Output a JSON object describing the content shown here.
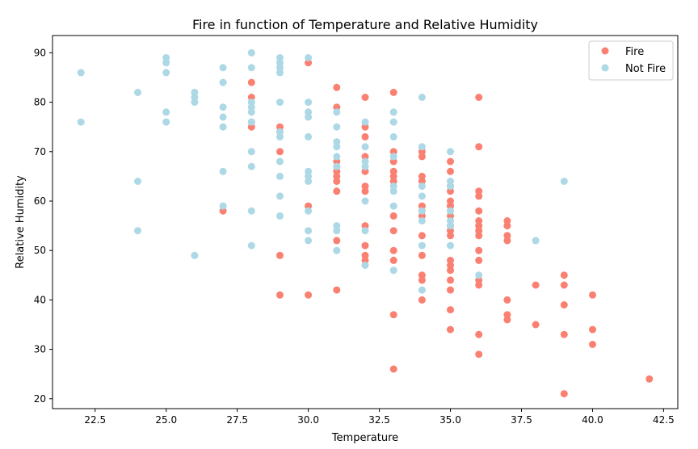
{
  "chart_data": {
    "type": "scatter",
    "title": "Fire in function of Temperature and Relative Humidity",
    "xlabel": "Temperature",
    "ylabel": "Relative Humidity",
    "xlim": [
      21.0,
      43.0
    ],
    "ylim": [
      18.0,
      93.5
    ],
    "xticks": [
      22.5,
      25.0,
      27.5,
      30.0,
      32.5,
      35.0,
      37.5,
      40.0,
      42.5
    ],
    "xtick_labels": [
      "22.5",
      "25.0",
      "27.5",
      "30.0",
      "32.5",
      "35.0",
      "37.5",
      "40.0",
      "42.5"
    ],
    "yticks": [
      20,
      30,
      40,
      50,
      60,
      70,
      80,
      90
    ],
    "ytick_labels": [
      "20",
      "30",
      "40",
      "50",
      "60",
      "70",
      "80",
      "90"
    ],
    "grid": false,
    "legend_position": "top-right",
    "series": [
      {
        "name": "Fire",
        "color": "#fa8072",
        "points": [
          [
            27,
            58
          ],
          [
            28,
            84
          ],
          [
            28,
            81
          ],
          [
            28,
            76
          ],
          [
            28,
            75
          ],
          [
            29,
            75
          ],
          [
            29,
            74
          ],
          [
            29,
            70
          ],
          [
            29,
            49
          ],
          [
            29,
            41
          ],
          [
            30,
            88
          ],
          [
            30,
            59
          ],
          [
            30,
            41
          ],
          [
            31,
            83
          ],
          [
            31,
            79
          ],
          [
            31,
            68
          ],
          [
            31,
            67
          ],
          [
            31,
            66
          ],
          [
            31,
            65
          ],
          [
            31,
            64
          ],
          [
            31,
            62
          ],
          [
            31,
            52
          ],
          [
            31,
            42
          ],
          [
            32,
            81
          ],
          [
            32,
            75
          ],
          [
            32,
            73
          ],
          [
            32,
            69
          ],
          [
            32,
            66
          ],
          [
            32,
            63
          ],
          [
            32,
            62
          ],
          [
            32,
            55
          ],
          [
            32,
            51
          ],
          [
            32,
            49
          ],
          [
            32,
            48
          ],
          [
            33,
            82
          ],
          [
            33,
            70
          ],
          [
            33,
            68
          ],
          [
            33,
            66
          ],
          [
            33,
            65
          ],
          [
            33,
            64
          ],
          [
            33,
            57
          ],
          [
            33,
            54
          ],
          [
            33,
            50
          ],
          [
            33,
            48
          ],
          [
            33,
            37
          ],
          [
            33,
            26
          ],
          [
            34,
            70
          ],
          [
            34,
            69
          ],
          [
            34,
            65
          ],
          [
            34,
            64
          ],
          [
            34,
            59
          ],
          [
            34,
            58
          ],
          [
            34,
            57
          ],
          [
            34,
            53
          ],
          [
            34,
            49
          ],
          [
            34,
            45
          ],
          [
            34,
            44
          ],
          [
            34,
            40
          ],
          [
            35,
            68
          ],
          [
            35,
            66
          ],
          [
            35,
            63
          ],
          [
            35,
            62
          ],
          [
            35,
            60
          ],
          [
            35,
            59
          ],
          [
            35,
            57
          ],
          [
            35,
            55
          ],
          [
            35,
            54
          ],
          [
            35,
            53
          ],
          [
            35,
            48
          ],
          [
            35,
            47
          ],
          [
            35,
            46
          ],
          [
            35,
            44
          ],
          [
            35,
            42
          ],
          [
            35,
            38
          ],
          [
            35,
            34
          ],
          [
            36,
            81
          ],
          [
            36,
            71
          ],
          [
            36,
            62
          ],
          [
            36,
            61
          ],
          [
            36,
            58
          ],
          [
            36,
            56
          ],
          [
            36,
            55
          ],
          [
            36,
            54
          ],
          [
            36,
            53
          ],
          [
            36,
            50
          ],
          [
            36,
            48
          ],
          [
            36,
            44
          ],
          [
            36,
            43
          ],
          [
            36,
            33
          ],
          [
            36,
            29
          ],
          [
            37,
            56
          ],
          [
            37,
            55
          ],
          [
            37,
            53
          ],
          [
            37,
            52
          ],
          [
            37,
            40
          ],
          [
            37,
            37
          ],
          [
            37,
            36
          ],
          [
            38,
            43
          ],
          [
            38,
            35
          ],
          [
            39,
            45
          ],
          [
            39,
            43
          ],
          [
            39,
            39
          ],
          [
            39,
            33
          ],
          [
            39,
            21
          ],
          [
            40,
            41
          ],
          [
            40,
            34
          ],
          [
            40,
            31
          ],
          [
            42,
            24
          ]
        ]
      },
      {
        "name": "Not Fire",
        "color": "#add8e6",
        "points": [
          [
            22,
            86
          ],
          [
            22,
            76
          ],
          [
            24,
            82
          ],
          [
            24,
            64
          ],
          [
            24,
            54
          ],
          [
            25,
            89
          ],
          [
            25,
            88
          ],
          [
            25,
            86
          ],
          [
            25,
            78
          ],
          [
            25,
            76
          ],
          [
            26,
            82
          ],
          [
            26,
            81
          ],
          [
            26,
            80
          ],
          [
            26,
            49
          ],
          [
            27,
            87
          ],
          [
            27,
            84
          ],
          [
            27,
            79
          ],
          [
            27,
            77
          ],
          [
            27,
            75
          ],
          [
            27,
            66
          ],
          [
            27,
            59
          ],
          [
            28,
            90
          ],
          [
            28,
            87
          ],
          [
            28,
            80
          ],
          [
            28,
            79
          ],
          [
            28,
            78
          ],
          [
            28,
            76
          ],
          [
            28,
            70
          ],
          [
            28,
            67
          ],
          [
            28,
            58
          ],
          [
            28,
            51
          ],
          [
            29,
            89
          ],
          [
            29,
            88
          ],
          [
            29,
            87
          ],
          [
            29,
            86
          ],
          [
            29,
            80
          ],
          [
            29,
            74
          ],
          [
            29,
            73
          ],
          [
            29,
            68
          ],
          [
            29,
            65
          ],
          [
            29,
            61
          ],
          [
            29,
            57
          ],
          [
            30,
            89
          ],
          [
            30,
            80
          ],
          [
            30,
            78
          ],
          [
            30,
            77
          ],
          [
            30,
            73
          ],
          [
            30,
            66
          ],
          [
            30,
            65
          ],
          [
            30,
            64
          ],
          [
            30,
            58
          ],
          [
            30,
            54
          ],
          [
            30,
            52
          ],
          [
            31,
            78
          ],
          [
            31,
            75
          ],
          [
            31,
            72
          ],
          [
            31,
            71
          ],
          [
            31,
            69
          ],
          [
            31,
            67
          ],
          [
            31,
            55
          ],
          [
            31,
            54
          ],
          [
            31,
            50
          ],
          [
            32,
            76
          ],
          [
            32,
            71
          ],
          [
            32,
            68
          ],
          [
            32,
            67
          ],
          [
            32,
            60
          ],
          [
            32,
            54
          ],
          [
            32,
            47
          ],
          [
            33,
            78
          ],
          [
            33,
            76
          ],
          [
            33,
            73
          ],
          [
            33,
            69
          ],
          [
            33,
            63
          ],
          [
            33,
            62
          ],
          [
            33,
            59
          ],
          [
            33,
            46
          ],
          [
            34,
            81
          ],
          [
            34,
            71
          ],
          [
            34,
            63
          ],
          [
            34,
            61
          ],
          [
            34,
            58
          ],
          [
            34,
            56
          ],
          [
            34,
            51
          ],
          [
            34,
            42
          ],
          [
            35,
            70
          ],
          [
            35,
            64
          ],
          [
            35,
            63
          ],
          [
            35,
            58
          ],
          [
            35,
            56
          ],
          [
            35,
            55
          ],
          [
            35,
            51
          ],
          [
            36,
            45
          ],
          [
            38,
            52
          ],
          [
            39,
            64
          ]
        ]
      }
    ]
  }
}
